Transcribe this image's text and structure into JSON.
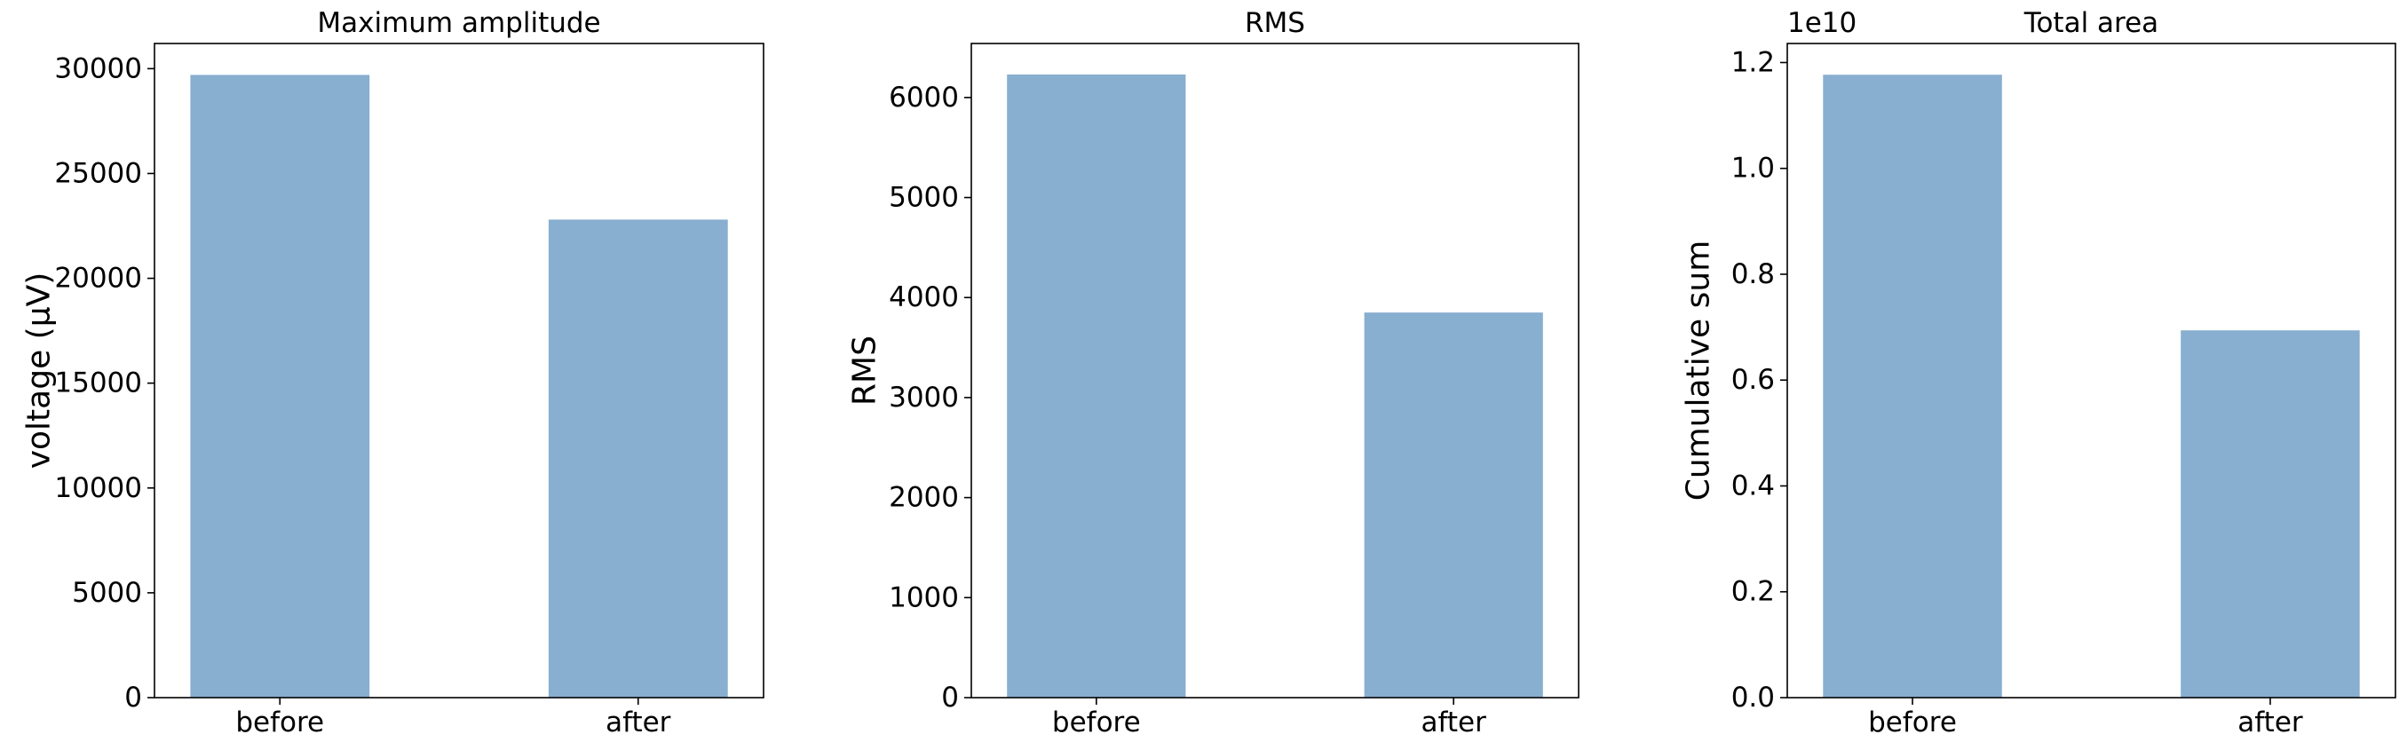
{
  "chart_data": [
    {
      "type": "bar",
      "title": "Maximum amplitude",
      "categories": [
        "before",
        "after"
      ],
      "values": [
        29700,
        22800
      ],
      "ylabel": "voltage (μV)",
      "ylim": [
        0,
        31200
      ],
      "yticks": [
        0,
        5000,
        10000,
        15000,
        20000,
        25000,
        30000
      ],
      "ytick_labels": [
        "0",
        "5000",
        "10000",
        "15000",
        "20000",
        "25000",
        "30000"
      ],
      "offset_text": "",
      "color": "#88aed0",
      "grid": false
    },
    {
      "type": "bar",
      "title": "RMS",
      "categories": [
        "before",
        "after"
      ],
      "values": [
        6230,
        3850
      ],
      "ylabel": "RMS",
      "ylim": [
        0,
        6540
      ],
      "yticks": [
        0,
        1000,
        2000,
        3000,
        4000,
        5000,
        6000
      ],
      "ytick_labels": [
        "0",
        "1000",
        "2000",
        "3000",
        "4000",
        "5000",
        "6000"
      ],
      "offset_text": "",
      "color": "#88aed0",
      "grid": false
    },
    {
      "type": "bar",
      "title": "Total area",
      "categories": [
        "before",
        "after"
      ],
      "values": [
        11770000000,
        6940000000
      ],
      "ylabel": "Cumulative sum",
      "ylim": [
        0,
        12360000000
      ],
      "yticks": [
        0,
        2000000000,
        4000000000,
        6000000000,
        8000000000,
        10000000000,
        12000000000
      ],
      "ytick_labels": [
        "0.0",
        "0.2",
        "0.4",
        "0.6",
        "0.8",
        "1.0",
        "1.2"
      ],
      "offset_text": "1e10",
      "color": "#88aed0",
      "grid": false
    }
  ]
}
